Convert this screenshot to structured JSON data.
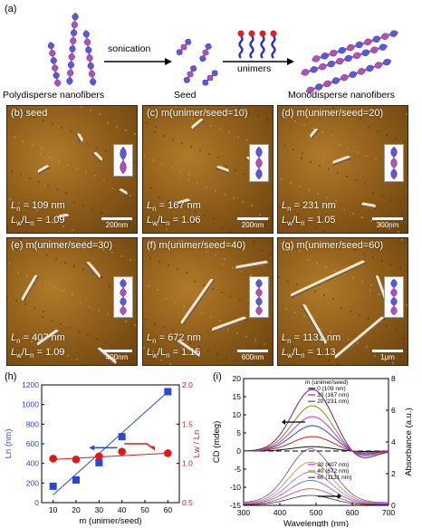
{
  "panel_labels": {
    "a": "(a)",
    "h": "(h)",
    "i": "(i)"
  },
  "scheme": {
    "sonication_label": "sonication",
    "unimers_label": "unimers",
    "caption_left": "Polydisperse nanofibers",
    "caption_mid": "Seed",
    "caption_right": "Monodisperse nanofibers",
    "colors": {
      "fiber_blue": "#5a5ad8",
      "fiber_purple": "#b44fb4",
      "unimer_head": "#e02020"
    }
  },
  "afm_panels": [
    {
      "label": "(b) seed",
      "ln": "109",
      "pdi": "1.09",
      "scale": "200nm"
    },
    {
      "label": "(c) m(unimer/seed=10)",
      "ln": "167",
      "pdi": "1.06",
      "scale": "200nm"
    },
    {
      "label": "(d) m(unimer/seed=20)",
      "ln": "231",
      "pdi": "1.05",
      "scale": "300nm"
    },
    {
      "label": "(e) m(unimer/seed=30)",
      "ln": "407",
      "pdi": "1.09",
      "scale": "400nm"
    },
    {
      "label": "(f) m(unimer/seed=40)",
      "ln": "672",
      "pdi": "1.15",
      "scale": "600nm"
    },
    {
      "label": "(g) m(unimer/seed=60)",
      "ln": "1131",
      "pdi": "1.13",
      "scale": "1μm"
    }
  ],
  "afm_text": {
    "ln_prefix": "L",
    "ln_sub": "n",
    "unit": "nm",
    "pdi_prefix": "L",
    "pdi_sub1": "w",
    "pdi_mid": "/L",
    "pdi_sub2": "n",
    "eq": " = "
  },
  "chart_data": [
    {
      "panel": "(h)",
      "type": "scatter",
      "xlabel": "m (unimer/seed)",
      "x_ticks": [
        10,
        20,
        30,
        40,
        50,
        60
      ],
      "xlim": [
        5,
        65
      ],
      "ylabel_left": "Ln (nm)",
      "ylim_left": [
        0,
        1200
      ],
      "yticks_left": [
        0,
        200,
        400,
        600,
        800,
        1000,
        1200
      ],
      "ylabel_right": "Lw / Ln",
      "ylim_right": [
        0.5,
        2.0
      ],
      "yticks_right": [
        "0.5",
        "1.0",
        "1.5",
        "2.0"
      ],
      "series": [
        {
          "axis": "left",
          "x": [
            10,
            20,
            30,
            40,
            60
          ],
          "y": [
            167,
            231,
            407,
            672,
            1131
          ],
          "color": "#2a48d8",
          "marker": "square",
          "fit": [
            [
              10,
              80
            ],
            [
              60,
              1130
            ]
          ]
        },
        {
          "axis": "right",
          "x": [
            10,
            20,
            30,
            40,
            60
          ],
          "y": [
            1.06,
            1.05,
            1.09,
            1.15,
            1.13
          ],
          "color": "#e01818",
          "marker": "circle",
          "fit": [
            [
              10,
              1.05
            ],
            [
              60,
              1.13
            ]
          ]
        }
      ]
    },
    {
      "panel": "(i)",
      "type": "line",
      "xlabel": "Wavelength (nm)",
      "xlim": [
        300,
        700
      ],
      "x_ticks": [
        300,
        400,
        500,
        600,
        700
      ],
      "ylabel_left": "CD (mdeg)",
      "ylim_left": [
        -15,
        20
      ],
      "yticks_left": [
        -15,
        -10,
        -5,
        0,
        5,
        10,
        15,
        20
      ],
      "ylabel_right": "Absorbance (a.u.)",
      "ylim_right": [
        0,
        8
      ],
      "yticks_right": [
        0,
        2,
        4,
        6,
        8
      ],
      "legend_title": "m (unimer/seed)",
      "legend": [
        {
          "m": "0",
          "ln": "(109 nm)",
          "color": "#111111"
        },
        {
          "m": "10",
          "ln": "(167 nm)",
          "color": "#e01818"
        },
        {
          "m": "20",
          "ln": "(231 nm)",
          "color": "#2a48d8"
        },
        {
          "m": "30",
          "ln": "(407 nm)",
          "color": "#d030d0"
        },
        {
          "m": "40",
          "ln": "(672 nm)",
          "color": "#8a8a10"
        },
        {
          "m": "60",
          "ln": "(1131 nm)",
          "color": "#6a2090"
        }
      ],
      "cd_peaks": [
        1.2,
        4.0,
        7.0,
        9.5,
        12.5,
        17.0
      ],
      "abs_peaks": [
        0.6,
        1.0,
        1.5,
        2.0,
        2.6,
        3.4
      ],
      "peak_wavelength": 490
    }
  ]
}
